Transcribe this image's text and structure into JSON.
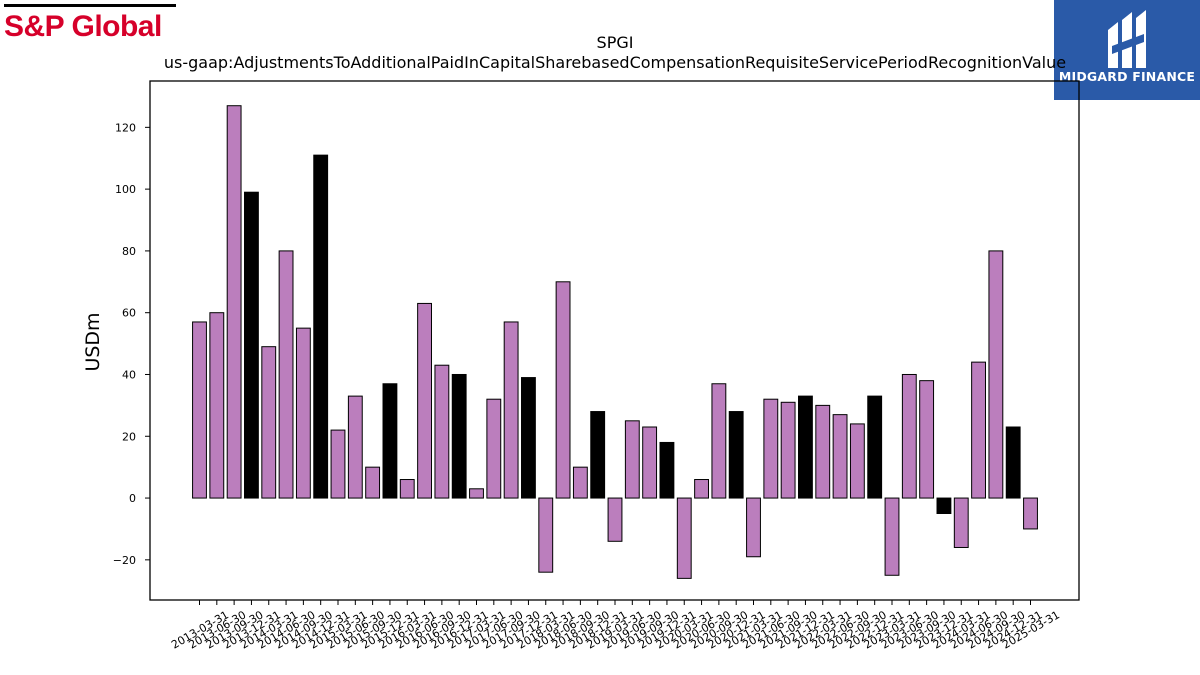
{
  "brand": {
    "sp_global_logo": "S&P Global",
    "sp_global_color": "#d6002a",
    "midgard_logo": "MIDGARD FINANCE",
    "midgard_bg_color": "#2a5aa8"
  },
  "chart_data": {
    "type": "bar",
    "title": "SPGI",
    "subtitle": "us-gaap:AdjustmentsToAdditionalPaidInCapitalSharebasedCompensationRequisiteServicePeriodRecognitionValue",
    "xlabel": "",
    "ylabel": "USDm",
    "ylim": [
      -33,
      135
    ],
    "yticks": [
      -20,
      0,
      20,
      40,
      60,
      80,
      100,
      120
    ],
    "grid": false,
    "legend": "none",
    "colors": {
      "quarter": "#bb7ebd",
      "year_end": "#000000",
      "edge": "#000000"
    },
    "categories": [
      "2013-03-31",
      "2013-06-30",
      "2013-09-30",
      "2013-12-31",
      "2014-03-31",
      "2014-06-30",
      "2014-09-30",
      "2014-12-31",
      "2015-03-31",
      "2015-06-30",
      "2015-09-30",
      "2015-12-31",
      "2016-03-31",
      "2016-06-30",
      "2016-09-30",
      "2016-12-31",
      "2017-03-31",
      "2017-06-30",
      "2017-09-30",
      "2017-12-31",
      "2018-03-31",
      "2018-06-30",
      "2018-09-30",
      "2018-12-31",
      "2019-03-31",
      "2019-06-30",
      "2019-09-30",
      "2019-12-31",
      "2020-03-31",
      "2020-06-30",
      "2020-09-30",
      "2020-12-31",
      "2021-03-31",
      "2021-06-30",
      "2021-09-30",
      "2021-12-31",
      "2022-03-31",
      "2022-06-30",
      "2022-09-30",
      "2022-12-31",
      "2023-03-31",
      "2023-06-30",
      "2023-09-30",
      "2023-12-31",
      "2024-03-31",
      "2024-06-30",
      "2024-09-30",
      "2024-12-31",
      "2025-03-31"
    ],
    "values": [
      57,
      60,
      127,
      99,
      49,
      80,
      55,
      111,
      22,
      33,
      10,
      37,
      6,
      63,
      43,
      40,
      3,
      32,
      57,
      39,
      -24,
      70,
      10,
      28,
      -14,
      25,
      23,
      18,
      -26,
      6,
      37,
      28,
      -19,
      32,
      31,
      33,
      30,
      27,
      24,
      33,
      -25,
      40,
      38,
      -5,
      -16,
      44,
      80,
      23,
      -10
    ]
  }
}
